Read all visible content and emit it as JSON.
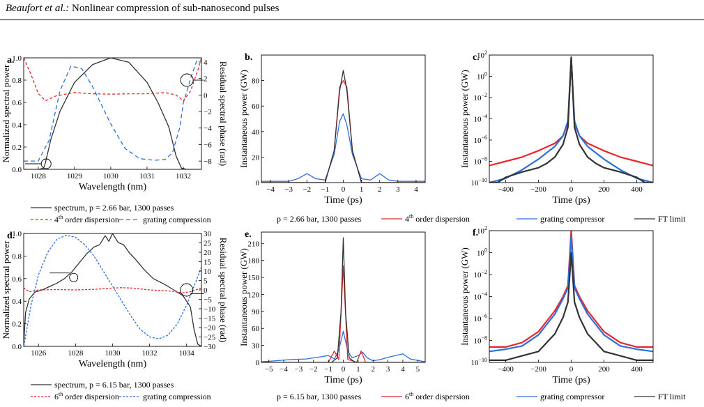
{
  "header": {
    "authors": "Beaufort et al.:",
    "title": "Nonlinear compression of sub-nanosecond pulses"
  },
  "colors": {
    "black": "#333333",
    "red": "#e8262b",
    "blue": "#2d6fdc"
  },
  "chart_data": [
    {
      "panel": "a.",
      "type": "line",
      "xlabel": "Wavelength (nm)",
      "ylabel": "Normalized spectral power",
      "y2label": "Residual spectral phase (rad)",
      "xlim": [
        1027.6,
        1032.5
      ],
      "ylim": [
        0,
        1.0
      ],
      "y2lim": [
        -9,
        4.5
      ],
      "xticks": [
        1028,
        1029,
        1030,
        1031,
        1032
      ],
      "yticks": [
        0.0,
        0.2,
        0.4,
        0.6,
        0.8,
        1.0
      ],
      "y2ticks": [
        -8,
        -6,
        -4,
        -2,
        0,
        2,
        4
      ],
      "series": [
        {
          "key": "spectrum",
          "axis": "left",
          "color": "black",
          "x": [
            1027.6,
            1028.0,
            1028.15,
            1028.2,
            1028.35,
            1028.6,
            1029.0,
            1029.5,
            1030.0,
            1030.5,
            1031.0,
            1031.3,
            1031.6,
            1031.8,
            1031.95,
            1032.1,
            1032.5
          ],
          "y": [
            0,
            0,
            0.01,
            0.06,
            0.27,
            0.52,
            0.78,
            0.94,
            1.0,
            0.96,
            0.78,
            0.6,
            0.38,
            0.12,
            0.01,
            0,
            0
          ]
        },
        {
          "key": "order4",
          "axis": "right",
          "color": "red",
          "dash": "4,3",
          "x": [
            1027.6,
            1027.8,
            1028.0,
            1028.2,
            1028.5,
            1029.0,
            1029.5,
            1030.0,
            1030.5,
            1031.0,
            1031.5,
            1031.8,
            1032.0,
            1032.2,
            1032.4,
            1032.5
          ],
          "y": [
            4.5,
            2.5,
            0.2,
            -0.7,
            -0.1,
            0.3,
            0.15,
            0.1,
            0.15,
            0.15,
            0.3,
            0.0,
            -0.7,
            0.5,
            3.0,
            4.5
          ]
        },
        {
          "key": "grating",
          "axis": "right",
          "color": "blue",
          "dash": "6,4",
          "x": [
            1027.6,
            1027.8,
            1028.0,
            1028.3,
            1028.6,
            1028.9,
            1029.2,
            1029.5,
            1030.0,
            1030.4,
            1030.8,
            1031.2,
            1031.5,
            1031.7,
            1031.9,
            1032.0,
            1032.2,
            1032.4
          ],
          "y": [
            -8,
            -8,
            -8,
            -5.5,
            0.5,
            3.5,
            3.2,
            1.0,
            -3.5,
            -6.5,
            -7.7,
            -7.9,
            -7.8,
            -7.0,
            -4.0,
            -1.0,
            2.0,
            4.5
          ]
        }
      ],
      "legend": [
        {
          "key": "spectrum",
          "text": "spectrum, p = 2.66 bar, 1300 passes"
        },
        {
          "key": "order4",
          "pre": "4",
          "sup": "th",
          "post": " order dispersion"
        },
        {
          "key": "grating",
          "text": "grating compression"
        }
      ]
    },
    {
      "panel": "b.",
      "type": "line",
      "xlabel": "Time (ps)",
      "ylabel": "Instantaneous power (GW)",
      "xlim": [
        -4.5,
        4.5
      ],
      "ylim": [
        0,
        100
      ],
      "xticks": [
        -4,
        -3,
        -2,
        -1,
        0,
        1,
        2,
        3,
        4
      ],
      "yticks": [
        0,
        20,
        40,
        60,
        80
      ],
      "series": [
        {
          "key": "grating",
          "color": "blue",
          "x": [
            -4.5,
            -3,
            -2.5,
            -2,
            -1.5,
            -1,
            -0.5,
            -0.2,
            0,
            0.2,
            0.5,
            1,
            1.5,
            2,
            2.5,
            3,
            4.5
          ],
          "y": [
            1,
            1,
            3,
            7,
            3,
            2,
            22,
            48,
            54,
            45,
            22,
            3,
            2,
            7,
            2,
            1,
            1
          ]
        },
        {
          "key": "order4",
          "color": "red",
          "x": [
            -4.5,
            -1,
            -0.5,
            -0.2,
            0,
            0.2,
            0.5,
            1,
            1.5,
            4.5
          ],
          "y": [
            0,
            0,
            25,
            75,
            80,
            75,
            25,
            0,
            0,
            0
          ]
        },
        {
          "key": "ft",
          "color": "black",
          "x": [
            -4.5,
            -1,
            -0.5,
            -0.2,
            0,
            0.2,
            0.5,
            1,
            4.5
          ],
          "y": [
            0,
            0,
            25,
            72,
            88,
            72,
            25,
            0,
            0
          ]
        }
      ],
      "legend": [
        {
          "key": "params",
          "text": "p = 2.66 bar, 1300 passes"
        },
        {
          "key": "order4",
          "pre": "4",
          "sup": "th",
          "post": " order dispersion"
        },
        {
          "key": "grating",
          "text": "grating compressor"
        },
        {
          "key": "ft",
          "text": "FT limit"
        }
      ]
    },
    {
      "panel": "c.",
      "type": "line",
      "yscale": "log",
      "xlabel": "Time (ps)",
      "ylabel": "Instantaneous power (GW)",
      "xlim": [
        -500,
        500
      ],
      "ylim": [
        -10,
        2
      ],
      "xticks": [
        -400,
        -200,
        0,
        200,
        400
      ],
      "yticks": [
        -10,
        -8,
        -6,
        -4,
        -2,
        0,
        2
      ],
      "series": [
        {
          "key": "order4",
          "color": "red",
          "x": [
            -500,
            -400,
            -300,
            -200,
            -100,
            -50,
            -20,
            0,
            20,
            50,
            100,
            200,
            300,
            400,
            500
          ],
          "y": [
            -8.4,
            -8.0,
            -7.6,
            -7.0,
            -6.3,
            -5.6,
            -4.4,
            1.7,
            -4.4,
            -5.6,
            -6.3,
            -7.0,
            -7.6,
            -8.0,
            -8.4
          ]
        },
        {
          "key": "grating",
          "color": "blue",
          "x": [
            -500,
            -400,
            -300,
            -200,
            -100,
            -50,
            -20,
            0,
            20,
            50,
            100,
            200,
            300,
            400,
            500
          ],
          "y": [
            -10,
            -9.6,
            -8.8,
            -7.8,
            -6.6,
            -5.6,
            -4.2,
            1.6,
            -4.2,
            -5.6,
            -6.6,
            -7.8,
            -8.8,
            -9.6,
            -10
          ]
        },
        {
          "key": "ft",
          "color": "black",
          "x": [
            -500,
            -450,
            -400,
            -300,
            -200,
            -150,
            -100,
            -50,
            -20,
            0,
            20,
            50,
            100,
            150,
            200,
            300,
            400,
            450,
            500
          ],
          "y": [
            -10,
            -10,
            -9.5,
            -9.0,
            -8.6,
            -8.2,
            -7.6,
            -6.4,
            -4.8,
            1.8,
            -4.8,
            -6.4,
            -7.6,
            -8.2,
            -8.6,
            -9.0,
            -9.5,
            -10,
            -10
          ]
        }
      ]
    },
    {
      "panel": "d.",
      "type": "line",
      "xlabel": "Wavelength (nm)",
      "ylabel": "Normalized spectral power",
      "y2label": "Residual spectral phase (rad)",
      "xlim": [
        1025.2,
        1034.8
      ],
      "ylim": [
        0,
        1.0
      ],
      "y2lim": [
        -30,
        30
      ],
      "xticks": [
        1026,
        1028,
        1030,
        1032,
        1034
      ],
      "yticks": [
        0.0,
        0.2,
        0.4,
        0.6,
        0.8,
        1.0
      ],
      "y2ticks": [
        -30,
        -25,
        -20,
        -15,
        -10,
        -5,
        0,
        5,
        10,
        15,
        20,
        25,
        30
      ],
      "series": [
        {
          "key": "spectrum",
          "axis": "left",
          "color": "black",
          "x": [
            1025.2,
            1025.3,
            1025.5,
            1025.8,
            1026.2,
            1026.6,
            1027.0,
            1027.4,
            1027.8,
            1028.2,
            1028.6,
            1029.0,
            1029.3,
            1029.6,
            1029.8,
            1030.0,
            1030.3,
            1030.6,
            1030.9,
            1031.3,
            1031.7,
            1032.2,
            1032.8,
            1033.3,
            1033.8,
            1034.2,
            1034.4,
            1034.6,
            1034.8
          ],
          "y": [
            0.02,
            0.3,
            0.42,
            0.48,
            0.5,
            0.53,
            0.56,
            0.6,
            0.66,
            0.74,
            0.82,
            0.88,
            0.9,
            0.98,
            0.93,
            1.0,
            0.92,
            0.9,
            0.83,
            0.76,
            0.68,
            0.6,
            0.55,
            0.5,
            0.45,
            0.35,
            0.15,
            0.02,
            0
          ]
        },
        {
          "key": "order6",
          "axis": "right",
          "color": "red",
          "dash": "3,2",
          "x": [
            1025.2,
            1025.5,
            1026.0,
            1027.0,
            1028.0,
            1029.0,
            1030.0,
            1030.5,
            1031.0,
            1032.0,
            1033.0,
            1033.8,
            1034.2,
            1034.8
          ],
          "y": [
            1,
            -1,
            0,
            0.2,
            0,
            0.3,
            1,
            1.2,
            1,
            0,
            -0.5,
            -1.5,
            -1,
            1
          ]
        },
        {
          "key": "grating",
          "axis": "right",
          "color": "blue",
          "dash": "3,2",
          "x": [
            1025.2,
            1025.6,
            1026.0,
            1026.5,
            1027.0,
            1027.5,
            1028.0,
            1028.5,
            1029.0,
            1029.5,
            1030.0,
            1030.5,
            1031.0,
            1031.5,
            1032.0,
            1032.5,
            1033.0,
            1033.5,
            1034.0,
            1034.4,
            1034.8
          ],
          "y": [
            -30,
            -8,
            8,
            20,
            27,
            29,
            28,
            24,
            18,
            10,
            2,
            -6,
            -14,
            -21,
            -25,
            -26,
            -24,
            -18,
            -8,
            2,
            12
          ]
        }
      ],
      "legend": [
        {
          "key": "spectrum",
          "text": "spectrum, p = 6.15 bar, 1300 passes"
        },
        {
          "key": "order6",
          "pre": "6",
          "sup": "th",
          "post": " order dispersion"
        },
        {
          "key": "grating",
          "text": "grating compression"
        }
      ]
    },
    {
      "panel": "e.",
      "type": "line",
      "xlabel": "Time (ps)",
      "ylabel": "Instantaneous power (GW)",
      "xlim": [
        -5.5,
        5.5
      ],
      "ylim": [
        0,
        230
      ],
      "xticks": [
        -5,
        -4,
        -3,
        -2,
        -1,
        0,
        1,
        2,
        3,
        4,
        5
      ],
      "yticks": [
        0,
        30,
        60,
        90,
        120,
        150,
        180,
        210
      ],
      "series": [
        {
          "key": "grating",
          "color": "blue",
          "x": [
            -5.5,
            -4.5,
            -3.5,
            -2.5,
            -2,
            -1.5,
            -1,
            -0.6,
            -0.3,
            0,
            0.3,
            0.6,
            1,
            1.3,
            1.6,
            2,
            2.5,
            3,
            3.5,
            4,
            4.5,
            5.5
          ],
          "y": [
            1,
            3,
            5,
            6,
            8,
            10,
            12,
            6,
            22,
            55,
            20,
            8,
            12,
            18,
            8,
            3,
            5,
            9,
            12,
            15,
            6,
            1
          ]
        },
        {
          "key": "order6",
          "color": "red",
          "x": [
            -5.5,
            -1,
            -0.6,
            -0.3,
            0,
            0.3,
            0.6,
            0.9,
            1.2,
            1.5,
            1.8,
            5.5
          ],
          "y": [
            0,
            0,
            20,
            5,
            170,
            5,
            3,
            0,
            20,
            0,
            0,
            0
          ]
        },
        {
          "key": "ft",
          "color": "black",
          "x": [
            -5.5,
            -0.8,
            -0.4,
            -0.15,
            0,
            0.15,
            0.4,
            0.8,
            5.5
          ],
          "y": [
            0,
            0,
            8,
            90,
            220,
            90,
            8,
            0,
            0
          ]
        }
      ],
      "legend": [
        {
          "key": "params",
          "text": "p = 6.15 bar, 1300 passes"
        },
        {
          "key": "order6",
          "pre": "6",
          "sup": "th",
          "post": " order dispersion"
        },
        {
          "key": "grating",
          "text": "grating compressor"
        },
        {
          "key": "ft",
          "text": "FT limit"
        }
      ]
    },
    {
      "panel": "f.",
      "type": "line",
      "yscale": "log",
      "xlabel": "Time (ps)",
      "ylabel": "Instantaneous power (GW)",
      "xlim": [
        -500,
        500
      ],
      "ylim": [
        -10,
        2
      ],
      "xticks": [
        -400,
        -200,
        0,
        200,
        400
      ],
      "yticks": [
        -10,
        -8,
        -6,
        -4,
        -2,
        0,
        2
      ],
      "series": [
        {
          "key": "order6",
          "color": "red",
          "x": [
            -500,
            -400,
            -300,
            -200,
            -100,
            -50,
            -20,
            0,
            20,
            50,
            100,
            200,
            300,
            400,
            500
          ],
          "y": [
            -8.6,
            -8.6,
            -8.2,
            -7.2,
            -5.3,
            -4.0,
            -3.0,
            2.0,
            -3.0,
            -4.0,
            -5.3,
            -7.2,
            -8.2,
            -8.6,
            -8.6
          ]
        },
        {
          "key": "grating",
          "color": "blue",
          "x": [
            -500,
            -400,
            -300,
            -200,
            -100,
            -50,
            -20,
            0,
            20,
            50,
            100,
            200,
            300,
            400,
            500
          ],
          "y": [
            -9.0,
            -8.8,
            -8.5,
            -7.5,
            -5.6,
            -4.2,
            -3.2,
            1.5,
            -3.2,
            -4.2,
            -5.6,
            -7.5,
            -8.5,
            -8.8,
            -9.0
          ]
        },
        {
          "key": "ft",
          "color": "black",
          "x": [
            -500,
            -400,
            -300,
            -200,
            -150,
            -100,
            -50,
            -20,
            0,
            20,
            50,
            100,
            150,
            200,
            300,
            400,
            500
          ],
          "y": [
            -9.8,
            -9.8,
            -9.4,
            -9.0,
            -8.2,
            -7.4,
            -5.9,
            -4.5,
            0,
            -4.5,
            -5.9,
            -7.4,
            -8.2,
            -9.0,
            -9.4,
            -9.8,
            -9.8
          ]
        }
      ]
    }
  ]
}
